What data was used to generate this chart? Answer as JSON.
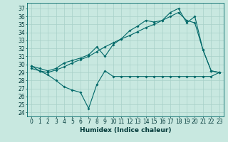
{
  "title": "",
  "xlabel": "Humidex (Indice chaleur)",
  "bg_color": "#c8e8e0",
  "line_color": "#006868",
  "grid_color": "#a8d0c8",
  "xlim": [
    -0.5,
    23.5
  ],
  "ylim": [
    23.5,
    37.7
  ],
  "yticks": [
    24,
    25,
    26,
    27,
    28,
    29,
    30,
    31,
    32,
    33,
    34,
    35,
    36,
    37
  ],
  "xticks": [
    0,
    1,
    2,
    3,
    4,
    5,
    6,
    7,
    8,
    9,
    10,
    11,
    12,
    13,
    14,
    15,
    16,
    17,
    18,
    19,
    20,
    21,
    22,
    23
  ],
  "line1_x": [
    0,
    1,
    2,
    3,
    4,
    5,
    6,
    7,
    8,
    9,
    10,
    11,
    12,
    13,
    14,
    15,
    16,
    17,
    18,
    19,
    20,
    21,
    22,
    23
  ],
  "line1_y": [
    29.8,
    29.5,
    29.2,
    29.5,
    30.2,
    30.5,
    30.8,
    31.2,
    32.2,
    31.0,
    32.5,
    33.2,
    34.2,
    34.8,
    35.5,
    35.3,
    35.5,
    36.5,
    37.0,
    35.2,
    36.0,
    31.8,
    29.2,
    29.0
  ],
  "line2_x": [
    0,
    1,
    2,
    3,
    4,
    5,
    6,
    7,
    8,
    9,
    10,
    11,
    12,
    13,
    14,
    15,
    16,
    17,
    18,
    19,
    20,
    21,
    22,
    23
  ],
  "line2_y": [
    29.5,
    29.2,
    29.0,
    29.3,
    29.7,
    30.2,
    30.6,
    31.0,
    31.6,
    32.2,
    32.7,
    33.2,
    33.6,
    34.1,
    34.6,
    35.0,
    35.5,
    36.0,
    36.5,
    35.5,
    35.2,
    31.8,
    29.2,
    29.0
  ],
  "line3_x": [
    0,
    1,
    2,
    3,
    4,
    5,
    6,
    7,
    8,
    9,
    10,
    11,
    12,
    13,
    14,
    15,
    16,
    17,
    18,
    19,
    20,
    21,
    22,
    23
  ],
  "line3_y": [
    29.8,
    29.2,
    28.7,
    28.0,
    27.2,
    26.8,
    26.5,
    24.5,
    27.5,
    29.2,
    28.5,
    28.5,
    28.5,
    28.5,
    28.5,
    28.5,
    28.5,
    28.5,
    28.5,
    28.5,
    28.5,
    28.5,
    28.5,
    29.0
  ],
  "markersize": 2.0,
  "linewidth": 0.8,
  "label_fontsize": 6.5,
  "tick_fontsize": 5.5
}
